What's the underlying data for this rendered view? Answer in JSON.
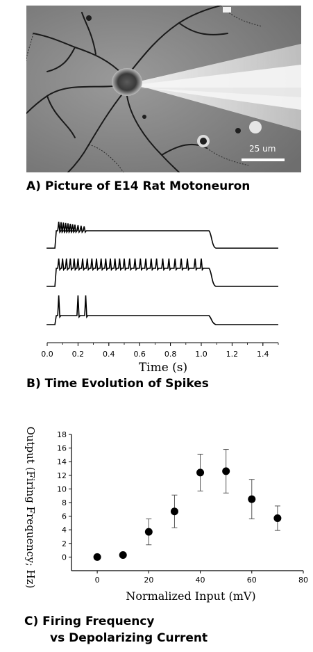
{
  "panels": {
    "a": {
      "caption": "A) Picture of E14 Rat Motoneuron",
      "scale_bar_label": "25 um"
    },
    "b": {
      "caption": "B) Time Evolution of Spikes"
    },
    "c": {
      "caption_line1": "C) Firing Frequency",
      "caption_line2": "vs Depolarizing Current"
    }
  },
  "chart_data": [
    {
      "type": "line",
      "xlabel": "Time (s)",
      "xlim": [
        0.0,
        1.5
      ],
      "x_ticks": [
        "0.0",
        "0.2",
        "0.4",
        "0.6",
        "0.8",
        "1.0",
        "1.2",
        "1.4"
      ],
      "stimulus_window_s": [
        0.05,
        1.05
      ],
      "traces": [
        {
          "spike_times_s": [
            0.075,
            0.09,
            0.105,
            0.12,
            0.135,
            0.15,
            0.165,
            0.18,
            0.2,
            0.22,
            0.24
          ]
        },
        {
          "spike_times_s": [
            0.075,
            0.1,
            0.125,
            0.15,
            0.175,
            0.2,
            0.23,
            0.26,
            0.29,
            0.32,
            0.35,
            0.38,
            0.41,
            0.44,
            0.47,
            0.5,
            0.535,
            0.57,
            0.605,
            0.64,
            0.675,
            0.71,
            0.75,
            0.79,
            0.83,
            0.87,
            0.91,
            0.96,
            1.0
          ]
        },
        {
          "spike_times_s": [
            0.075,
            0.2,
            0.25
          ]
        }
      ]
    },
    {
      "type": "scatter",
      "xlabel": "Normalized Input (mV)",
      "ylabel": "Output (Firing Frequency; Hz)",
      "xlim": [
        -10,
        80
      ],
      "ylim": [
        -2,
        18
      ],
      "x_ticks": [
        0,
        20,
        40,
        60,
        80
      ],
      "y_ticks": [
        0,
        2,
        4,
        6,
        8,
        10,
        12,
        14,
        16,
        18
      ],
      "points": [
        {
          "x": 0,
          "y": 0.0,
          "err": 0
        },
        {
          "x": 10,
          "y": 0.3,
          "err": 0
        },
        {
          "x": 20,
          "y": 3.7,
          "err": 1.9
        },
        {
          "x": 30,
          "y": 6.7,
          "err": 2.4
        },
        {
          "x": 40,
          "y": 12.4,
          "err": 2.7
        },
        {
          "x": 50,
          "y": 12.6,
          "err": 3.2
        },
        {
          "x": 60,
          "y": 8.5,
          "err": 2.9
        },
        {
          "x": 70,
          "y": 5.7,
          "err": 1.8
        }
      ]
    }
  ]
}
